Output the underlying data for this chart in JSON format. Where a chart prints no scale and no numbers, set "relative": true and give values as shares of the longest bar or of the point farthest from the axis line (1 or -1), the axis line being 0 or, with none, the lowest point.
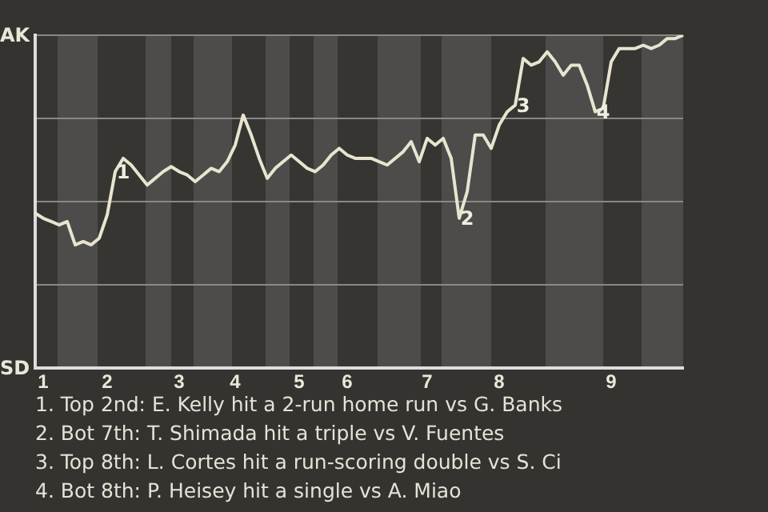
{
  "chart_data": {
    "type": "line",
    "relative": true,
    "categories": [
      null,
      "1",
      null,
      null,
      null,
      null,
      null,
      null,
      null,
      "2",
      null,
      null,
      null,
      null,
      null,
      null,
      null,
      null,
      "3",
      null,
      null,
      null,
      null,
      null,
      null,
      "4",
      null,
      null,
      null,
      null,
      null,
      null,
      null,
      "5",
      null,
      null,
      null,
      null,
      null,
      "6",
      null,
      null,
      null,
      null,
      null,
      null,
      null,
      null,
      null,
      "7",
      null,
      null,
      null,
      null,
      null,
      null,
      null,
      null,
      "8",
      null,
      null,
      null,
      null,
      null,
      null,
      null,
      null,
      null,
      null,
      null,
      null,
      null,
      "9",
      null,
      null,
      null,
      null,
      null,
      null,
      null,
      null,
      null
    ],
    "series": [
      {
        "color": "#e8e4d0",
        "values": [
          0.465,
          0.45,
          0.44,
          0.43,
          0.44,
          0.37,
          0.38,
          0.37,
          0.39,
          0.46,
          0.59,
          0.63,
          0.61,
          0.58,
          0.55,
          0.57,
          0.59,
          0.605,
          0.59,
          0.58,
          0.56,
          0.58,
          0.6,
          0.59,
          0.62,
          0.67,
          0.76,
          0.7,
          0.63,
          0.57,
          0.6,
          0.62,
          0.64,
          0.62,
          0.6,
          0.59,
          0.61,
          0.64,
          0.66,
          0.64,
          0.63,
          0.63,
          0.63,
          0.62,
          0.61,
          0.63,
          0.65,
          0.68,
          0.62,
          0.69,
          0.67,
          0.69,
          0.63,
          0.45,
          0.53,
          0.7,
          0.7,
          0.66,
          0.73,
          0.77,
          0.79,
          0.93,
          0.91,
          0.92,
          0.95,
          0.92,
          0.88,
          0.91,
          0.91,
          0.85,
          0.77,
          0.78,
          0.92,
          0.96,
          0.96,
          0.96,
          0.97,
          0.96,
          0.97,
          0.99,
          0.99,
          1
        ]
      }
    ],
    "grid": "y",
    "marker": "none",
    "line_style": "solid",
    "annotations": [
      "AK",
      "SD",
      {
        "text": "1",
        "y": 0.59
      },
      {
        "text": "2",
        "y": 0.45
      },
      {
        "text": "3",
        "y": 0.79
      },
      {
        "text": "4",
        "y": 0.77
      },
      "1. Top 2nd: E. Kelly hit a 2-run home run vs G. Banks",
      "2. Bot 7th: T. Shimada hit a triple vs V. Fuentes",
      "3. Top 8th: L. Cortes hit a run-scoring double vs S. Ci",
      "4. Bot 8th: P. Heisey hit a single vs A. Miao"
    ]
  }
}
